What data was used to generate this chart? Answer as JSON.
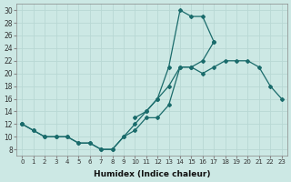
{
  "xlabel": "Humidex (Indice chaleur)",
  "bg_color": "#cce8e4",
  "line_color": "#1a6b6b",
  "grid_color": "#b8d8d4",
  "xlim": [
    -0.5,
    23.5
  ],
  "ylim": [
    7,
    31
  ],
  "xticks": [
    0,
    1,
    2,
    3,
    4,
    5,
    6,
    7,
    8,
    9,
    10,
    11,
    12,
    13,
    14,
    15,
    16,
    17,
    18,
    19,
    20,
    21,
    22,
    23
  ],
  "yticks": [
    8,
    10,
    12,
    14,
    16,
    18,
    20,
    22,
    24,
    26,
    28,
    30
  ],
  "series": [
    {
      "x": [
        0,
        1,
        2,
        3,
        4,
        5,
        6,
        7,
        8,
        9,
        10,
        11,
        12,
        13,
        14,
        15,
        16,
        17,
        18,
        19,
        20,
        21,
        22,
        23
      ],
      "y": [
        12,
        11,
        10,
        10,
        10,
        9,
        9,
        8,
        8,
        10,
        12,
        14,
        16,
        21,
        30,
        29,
        29,
        25,
        null,
        null,
        null,
        null,
        null,
        null
      ]
    },
    {
      "x": [
        0,
        1,
        2,
        3,
        4,
        5,
        6,
        7,
        8,
        9,
        10,
        11,
        12,
        13,
        14,
        15,
        16,
        17,
        18,
        19,
        20,
        21,
        22,
        23
      ],
      "y": [
        12,
        null,
        null,
        null,
        null,
        null,
        null,
        null,
        null,
        null,
        13,
        14,
        16,
        18,
        21,
        21,
        22,
        25,
        null,
        null,
        null,
        null,
        null,
        null
      ]
    },
    {
      "x": [
        0,
        1,
        2,
        3,
        4,
        5,
        6,
        7,
        8,
        9,
        10,
        11,
        12,
        13,
        14,
        15,
        16,
        17,
        18,
        19,
        20,
        21,
        22,
        23
      ],
      "y": [
        12,
        11,
        10,
        10,
        10,
        9,
        9,
        8,
        8,
        10,
        11,
        13,
        13,
        15,
        21,
        21,
        20,
        21,
        22,
        22,
        22,
        21,
        18,
        16
      ]
    }
  ]
}
